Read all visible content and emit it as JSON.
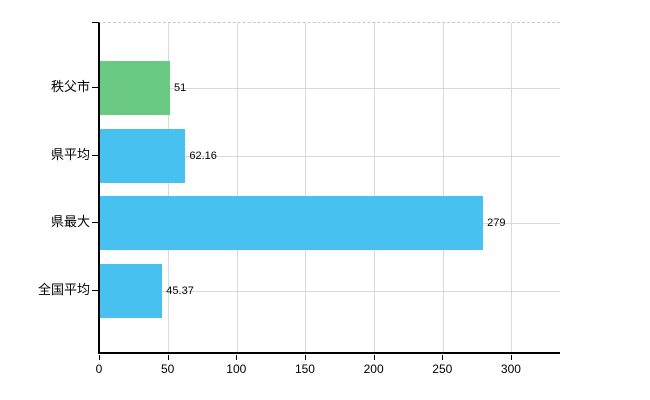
{
  "chart_data": {
    "type": "bar",
    "orientation": "horizontal",
    "title": "",
    "xlabel": "",
    "ylabel": "",
    "categories": [
      "秩父市",
      "県平均",
      "県最大",
      "全国平均"
    ],
    "values": [
      51,
      62.16,
      279,
      45.37
    ],
    "value_labels": [
      "51",
      "62.16",
      "279",
      "45.37"
    ],
    "bar_colors": [
      "#6aca84",
      "#47c1ef",
      "#47c1ef",
      "#47c1ef"
    ],
    "x_ticks": [
      0,
      50,
      100,
      150,
      200,
      250,
      300
    ],
    "x_tick_labels": [
      "0",
      "50",
      "100",
      "150",
      "200",
      "250",
      "300"
    ],
    "xlim": [
      0,
      335
    ],
    "grid": true,
    "legend": false
  },
  "colors": {
    "background": "#ffffff",
    "axis": "#000000",
    "gridline": "#d9d9d9",
    "top_border": "#c8c8c8",
    "text": "#000000"
  }
}
